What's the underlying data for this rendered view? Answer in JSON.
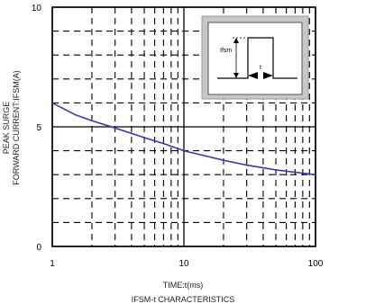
{
  "chart_data": {
    "type": "line",
    "x_scale": "log",
    "xlim": [
      1,
      100
    ],
    "ylim": [
      0,
      10
    ],
    "x_ticks": [
      "1",
      "10",
      "100"
    ],
    "y_ticks": [
      "0",
      "5",
      "10"
    ],
    "y_minor_ticks": [
      1,
      2,
      3,
      4,
      6,
      7,
      8,
      9
    ],
    "xlabel": "TIME:t(ms)",
    "ylabel_line1": "PEAK SURGE",
    "ylabel_line2": "FORWARD CURRENT:IFSM(A)",
    "caption": "IFSM-t CHARACTERISTICS",
    "grid": "dashed",
    "line_color": "#3a3aa6",
    "series": [
      {
        "x": [
          1,
          1.5,
          2,
          3,
          5,
          7,
          10,
          20,
          30,
          50,
          70,
          100
        ],
        "y": [
          6.0,
          5.5,
          5.25,
          4.95,
          4.55,
          4.3,
          4.0,
          3.6,
          3.4,
          3.2,
          3.1,
          3.0
        ]
      }
    ],
    "inset": {
      "label_amplitude": "Ifsm",
      "label_width": "t"
    }
  }
}
